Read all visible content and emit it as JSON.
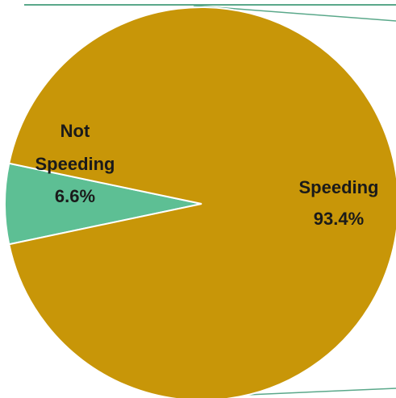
{
  "chart_data": {
    "type": "pie",
    "title": "",
    "legend": "none",
    "slices": [
      {
        "label_lines": [
          "Not",
          "Speeding"
        ],
        "value": 6.6,
        "value_label": "6.6%",
        "color": "#5dbf94"
      },
      {
        "label_lines": [
          "Speeding"
        ],
        "value": 93.4,
        "value_label": "93.4%",
        "color": "#c89608"
      }
    ],
    "connector_color": "#5aa88a"
  }
}
